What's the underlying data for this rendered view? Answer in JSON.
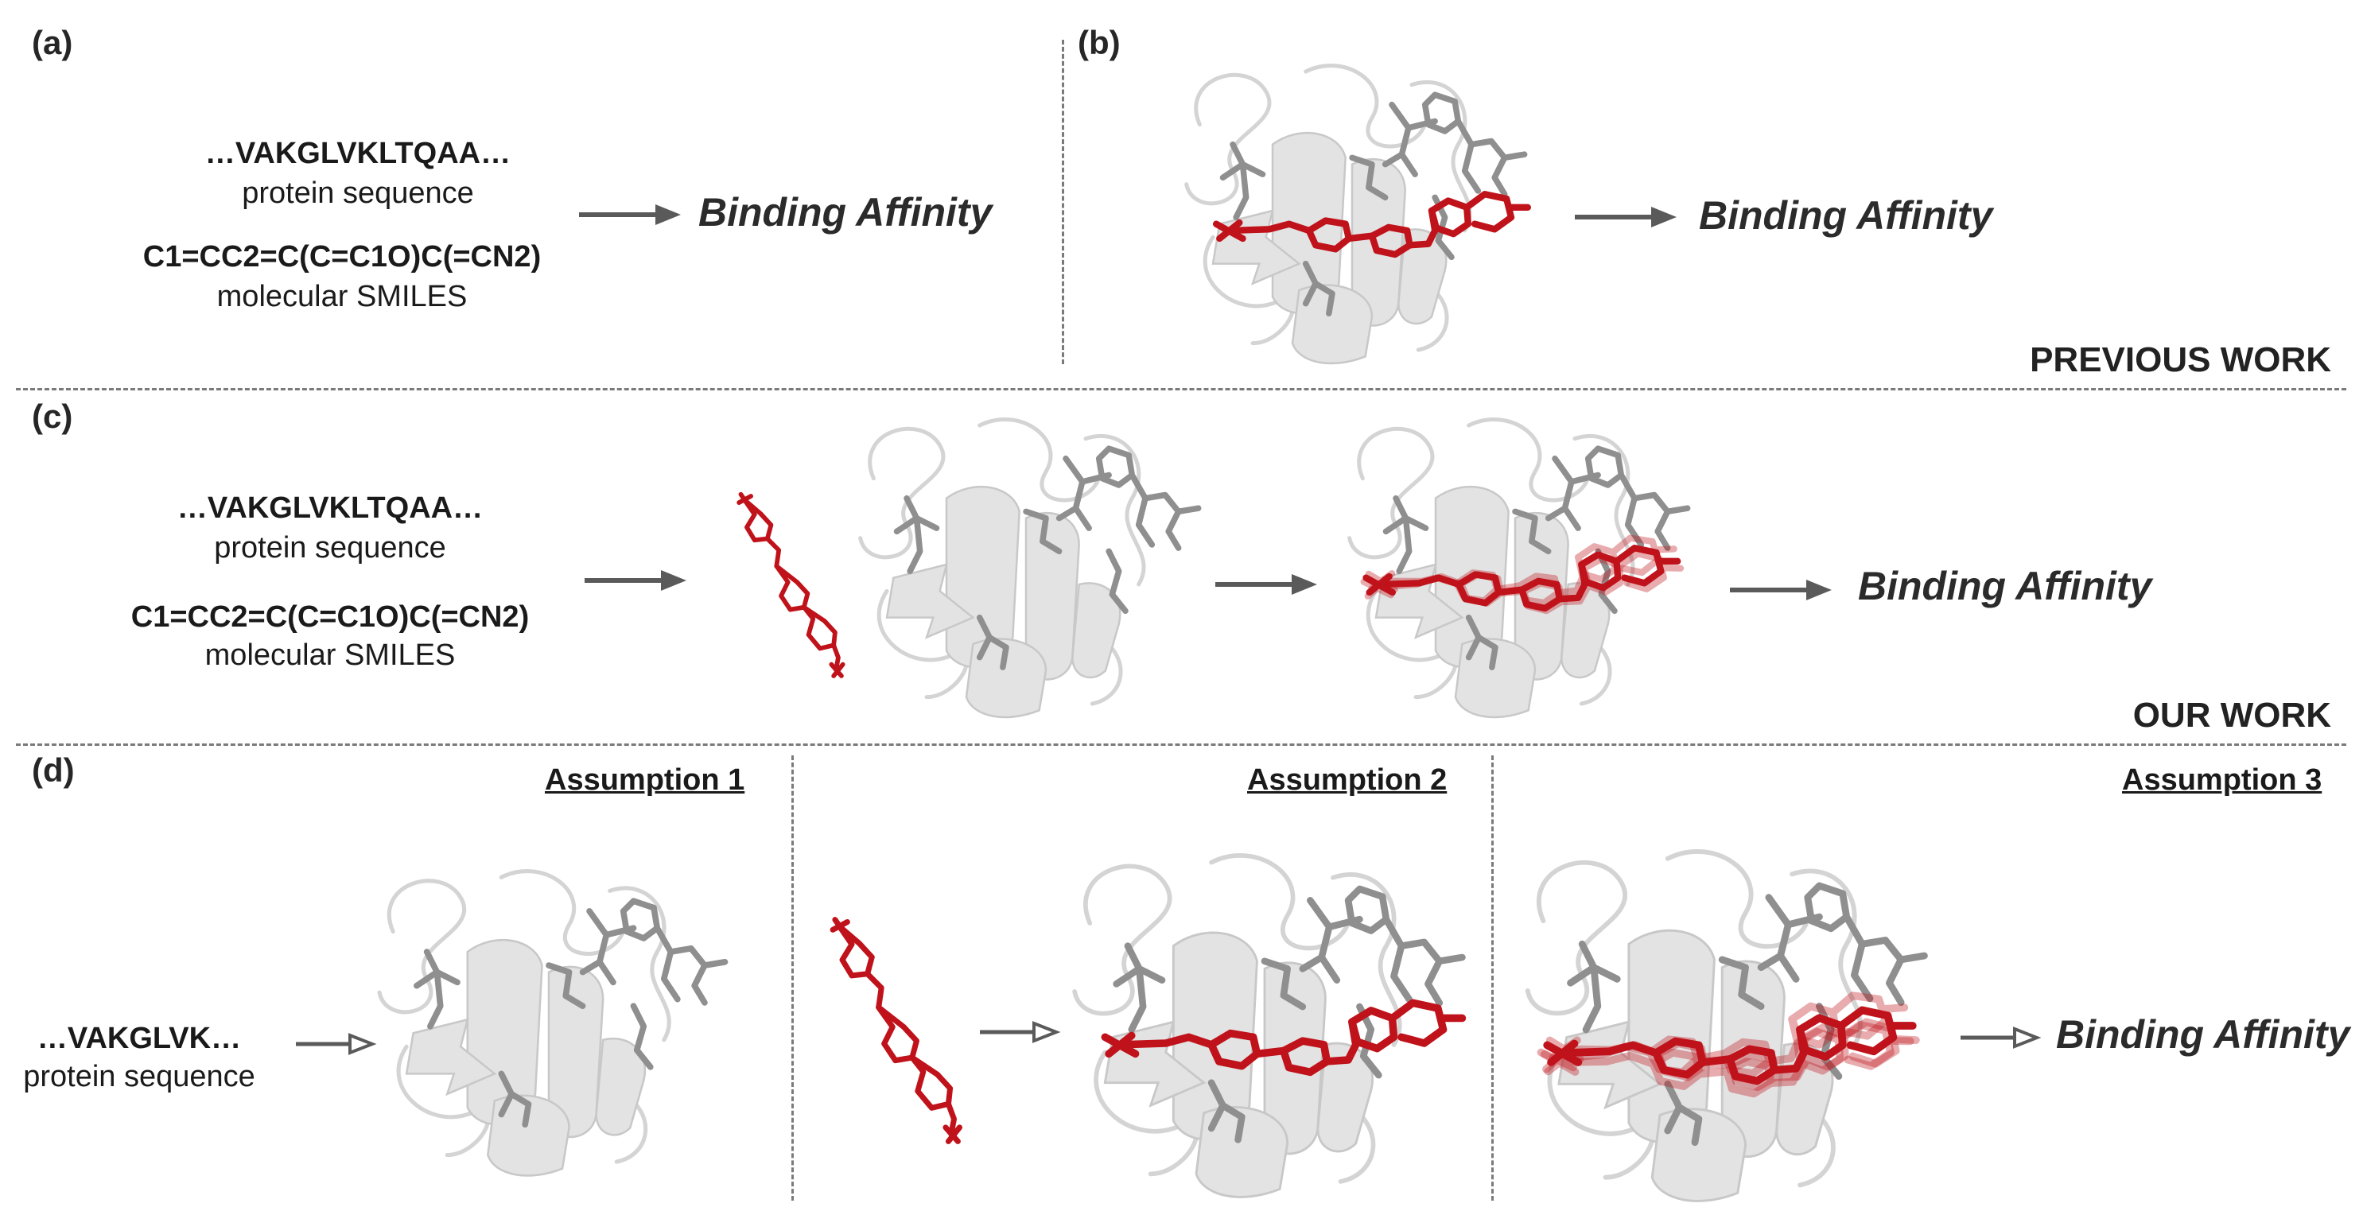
{
  "panel_labels": {
    "a": "(a)",
    "b": "(b)",
    "c": "(c)",
    "d": "(d)"
  },
  "texts": {
    "seq_long": "…VAKGLVKLTQAA…",
    "seq_short": "…VAKGLVK…",
    "protein_sequence": "protein sequence",
    "smiles": "C1=CC2=C(C=C1O)C(=CN2)",
    "molecular_smiles": "molecular SMILES",
    "binding_affinity": "Binding Affinity"
  },
  "sections": {
    "previous": "PREVIOUS WORK",
    "ours": "OUR WORK"
  },
  "assumptions": [
    "Assumption 1",
    "Assumption 2",
    "Assumption 3"
  ],
  "colors": {
    "ligand": "#c0121a",
    "protein": "#d9d9d9",
    "sidechain": "#8f8f8f",
    "arrow": "#5a5a5a",
    "divider": "#7a7a7a"
  },
  "icons": [
    "arrow-right-filled",
    "arrow-right-hollow",
    "protein-structure",
    "ligand-molecule",
    "protein-ligand-complex",
    "ligand-pose-ensemble"
  ]
}
